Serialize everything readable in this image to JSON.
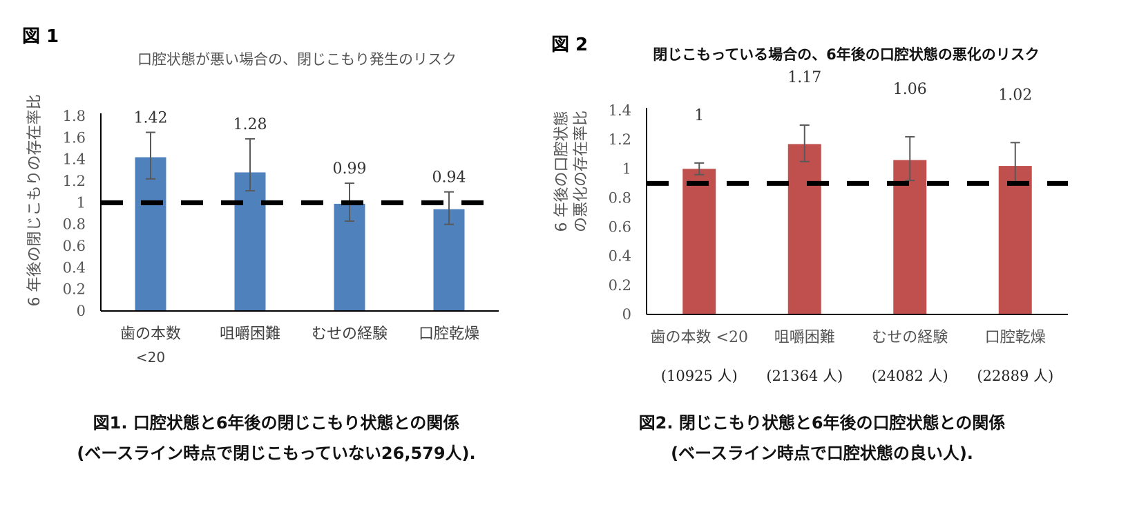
{
  "figures": [
    {
      "label": "図 1",
      "caption_line1": "図1.  口腔状態と6年後の閉じこもり状態との関係",
      "caption_line2": "(ベースライン時点で閉じこもっていない26,579人)."
    },
    {
      "label": "図 2",
      "caption_line1": "図2.  閉じこもり状態と6年後の口腔状態との関係",
      "caption_line2": "(ベースライン時点で口腔状態の良い人)."
    }
  ],
  "colors": {
    "chart1_bar": "#4f81bd",
    "chart2_bar": "#c0504d",
    "reference_line": "#000000",
    "axis": "#000000"
  },
  "chart_data": [
    {
      "type": "bar",
      "title": "口腔状態が悪い場合の、閉じこもり発生のリスク",
      "ylabel": "6 年後の閉じこもりの存在率比",
      "xlabel": "",
      "categories": [
        "歯の本数 <20",
        "咀嚼困難",
        "むせの経験",
        "口腔乾燥"
      ],
      "values": [
        1.42,
        1.28,
        0.99,
        0.94
      ],
      "data_labels": [
        "1.42",
        "1.28",
        "0.99",
        "0.94"
      ],
      "error_low": [
        1.22,
        1.11,
        0.83,
        0.8
      ],
      "error_high": [
        1.65,
        1.59,
        1.18,
        1.1
      ],
      "ylim": [
        0,
        1.8
      ],
      "yticks": [
        "0",
        "0.2",
        "0.4",
        "0.6",
        "0.8",
        "1",
        "1.2",
        "1.4",
        "1.6",
        "1.8"
      ],
      "reference_line": 1,
      "grid": false,
      "legend": "none"
    },
    {
      "type": "bar",
      "title": "閉じこもっている場合の、6年後の口腔状態の悪化のリスク",
      "ylabel": "6 年後の口腔状態の悪化の存在率比",
      "xlabel": "",
      "categories": [
        "歯の本数 <20",
        "咀嚼困難",
        "むせの経験",
        "口腔乾燥"
      ],
      "category_counts": [
        "(10925 人)",
        "(21364 人)",
        "(24082 人)",
        "(22889 人)"
      ],
      "values": [
        1,
        1.17,
        1.06,
        1.02
      ],
      "data_labels": [
        "1",
        "1.17",
        "1.06",
        "1.02"
      ],
      "error_low": [
        0.96,
        1.05,
        0.92,
        0.89
      ],
      "error_high": [
        1.04,
        1.3,
        1.22,
        1.18
      ],
      "ylim": [
        0,
        1.4
      ],
      "yticks": [
        "0",
        "0.2",
        "0.4",
        "0.6",
        "0.8",
        "1",
        "1.2",
        "1.4"
      ],
      "reference_line": 0.9,
      "grid": false,
      "legend": "none"
    }
  ]
}
